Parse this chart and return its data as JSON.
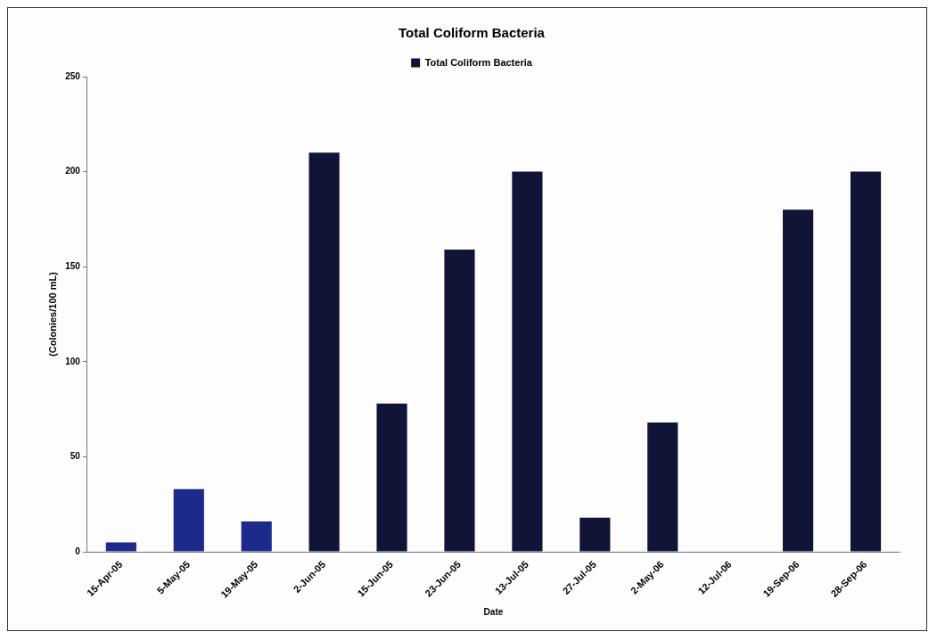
{
  "chart_data": {
    "type": "bar",
    "title": "Total Coliform Bacteria",
    "xlabel": "Date",
    "ylabel": "(Colonies/100 mL)",
    "categories": [
      "15-Apr-05",
      "5-May-05",
      "19-May-05",
      "2-Jun-05",
      "15-Jun-05",
      "23-Jun-05",
      "13-Jul-05",
      "27-Jul-05",
      "2-May-06",
      "12-Jul-06",
      "19-Sep-06",
      "28-Sep-06"
    ],
    "series": [
      {
        "name": "Total Coliform Bacteria",
        "color": "#101436",
        "colors": [
          "#1c2a8c",
          "#1c2a8c",
          "#1c2a8c",
          "#101436",
          "#101436",
          "#101436",
          "#101436",
          "#101436",
          "#101436",
          "#101436",
          "#101436",
          "#101436"
        ],
        "values": [
          5,
          33,
          16,
          210,
          78,
          159,
          200,
          18,
          68,
          0,
          180,
          200
        ]
      }
    ],
    "ylim": [
      0,
      250
    ],
    "yticks": [
      0,
      50,
      100,
      150,
      200,
      250
    ],
    "grid": false,
    "legend": "top"
  }
}
